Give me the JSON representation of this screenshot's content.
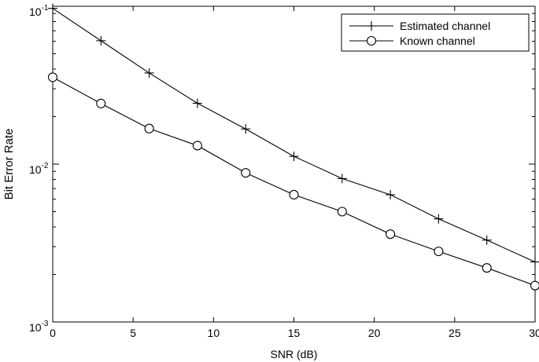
{
  "chart_data": {
    "type": "line",
    "title": "",
    "xlabel": "SNR (dB)",
    "ylabel": "Bit Error Rate",
    "xlim": [
      0,
      30
    ],
    "ylim": [
      0.001,
      0.1
    ],
    "yscale": "log",
    "grid": false,
    "legend_position": "top-right",
    "x_ticks": [
      {
        "value": 0,
        "label": "0"
      },
      {
        "value": 5,
        "label": "5"
      },
      {
        "value": 10,
        "label": "10"
      },
      {
        "value": 15,
        "label": "15"
      },
      {
        "value": 20,
        "label": "20"
      },
      {
        "value": 25,
        "label": "25"
      },
      {
        "value": 30,
        "label": "30"
      }
    ],
    "y_ticks": [
      {
        "value": 0.001,
        "base": "10",
        "exp": "-3"
      },
      {
        "value": 0.01,
        "base": "10",
        "exp": "-2"
      },
      {
        "value": 0.1,
        "base": "10",
        "exp": "-1"
      }
    ],
    "x": [
      0,
      3,
      6,
      9,
      12,
      15,
      18,
      21,
      24,
      27,
      30
    ],
    "series": [
      {
        "name": "Estimated channel",
        "marker": "plus",
        "color": "#000000",
        "values": [
          0.097,
          0.0605,
          0.0378,
          0.0243,
          0.0167,
          0.0112,
          0.0081,
          0.0064,
          0.0045,
          0.0033,
          0.0024
        ]
      },
      {
        "name": "Known channel",
        "marker": "circle",
        "color": "#000000",
        "values": [
          0.0355,
          0.0242,
          0.0168,
          0.0131,
          0.0088,
          0.0064,
          0.005,
          0.0036,
          0.0028,
          0.0022,
          0.0017
        ]
      }
    ]
  }
}
